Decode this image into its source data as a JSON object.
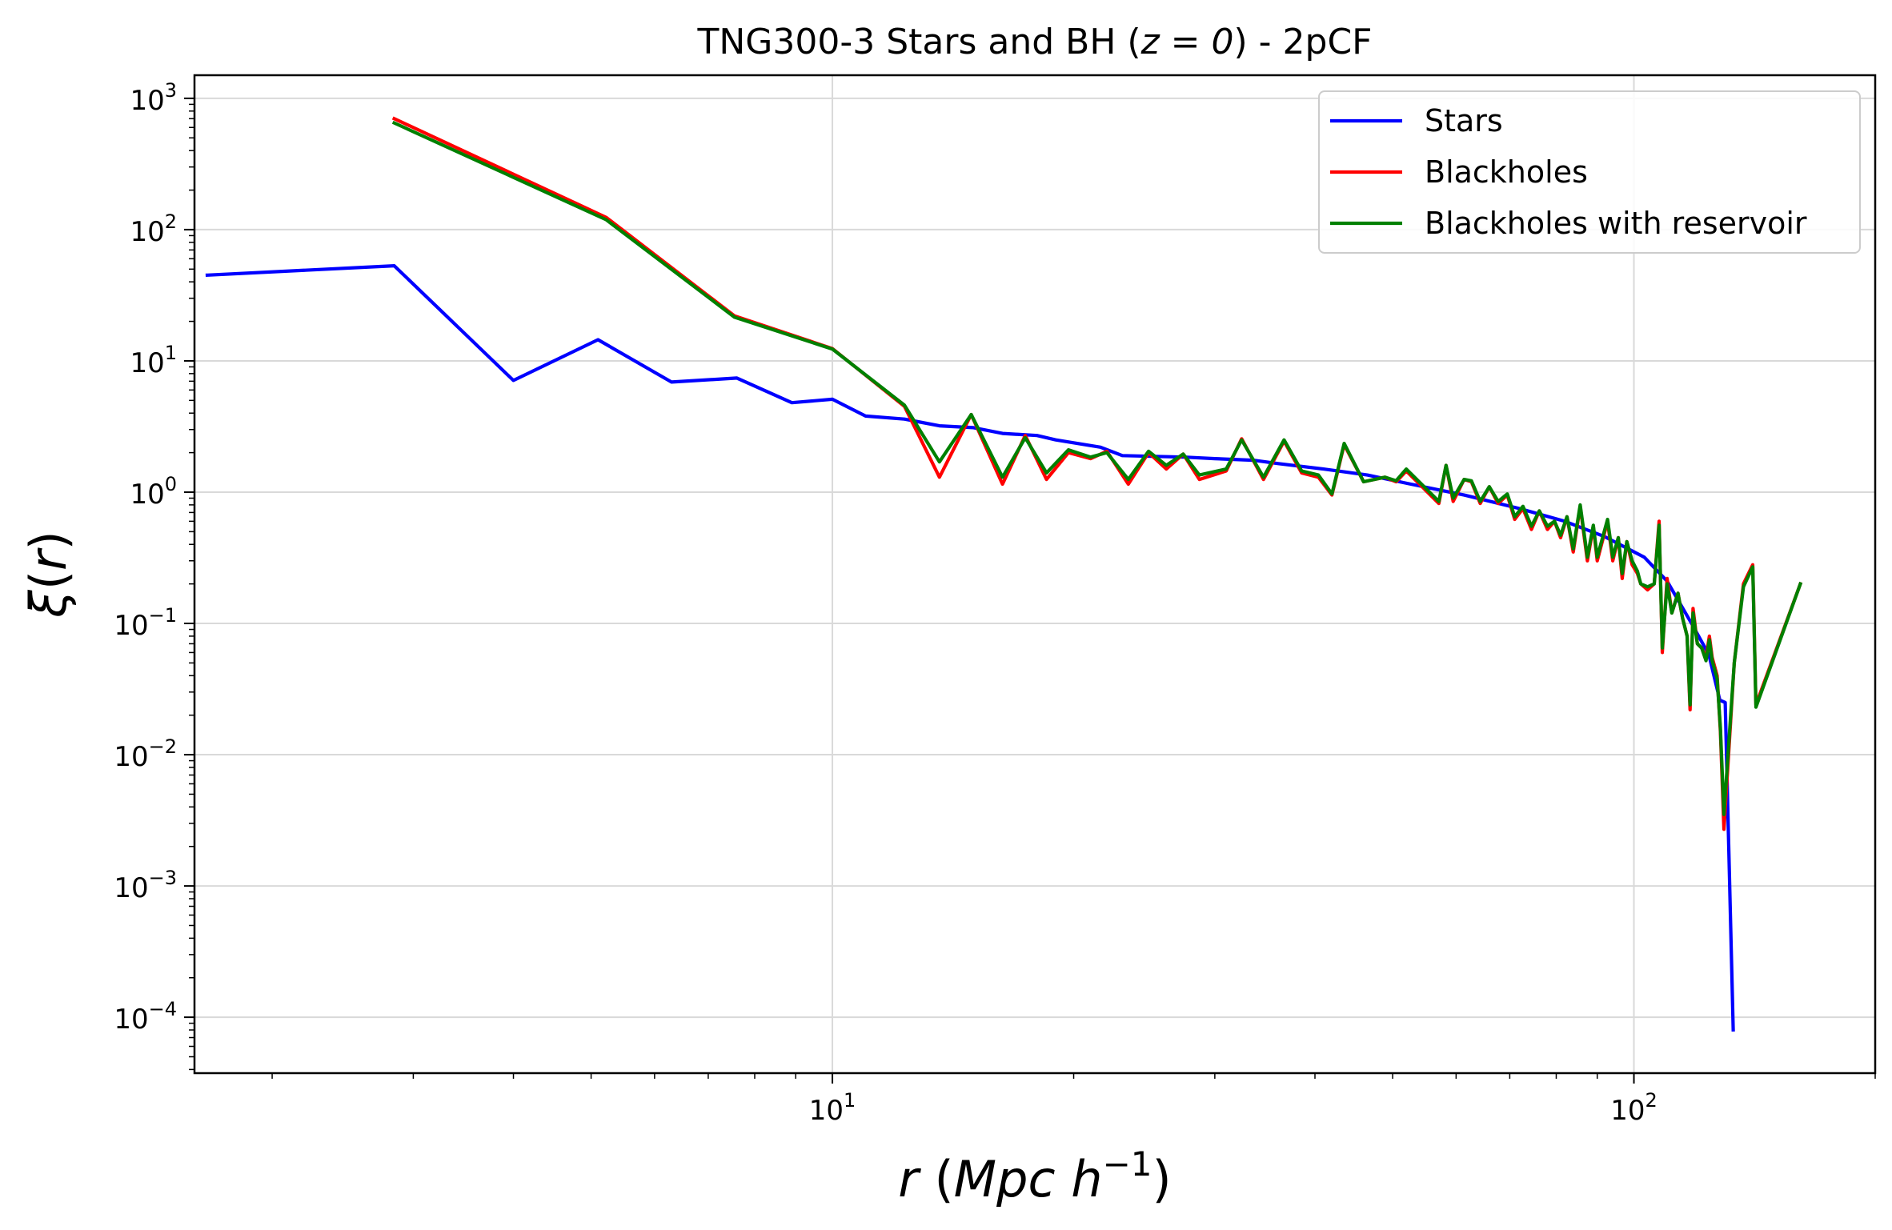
{
  "chart_data": {
    "type": "line",
    "title": "TNG300-3 Stars and BH (z = 0) - 2pCF",
    "title_parts": {
      "before": "TNG300-3 Stars and BH (",
      "math": "z = 0",
      "after": ") - 2pCF"
    },
    "xlabel": "r (Mpc h^-1)",
    "ylabel": "ξ(r)",
    "xscale": "log",
    "yscale": "log",
    "xlim": [
      1.6,
      200
    ],
    "ylim": [
      3.75e-05,
      1500
    ],
    "grid": true,
    "legend_position": "top-right",
    "x_ticks": [
      {
        "value": 10,
        "label_base": "10",
        "label_exp": "1"
      },
      {
        "value": 100,
        "label_base": "10",
        "label_exp": "2"
      }
    ],
    "y_ticks": [
      {
        "value": 1000,
        "label_base": "10",
        "label_exp": "3"
      },
      {
        "value": 100,
        "label_base": "10",
        "label_exp": "2"
      },
      {
        "value": 10,
        "label_base": "10",
        "label_exp": "1"
      },
      {
        "value": 1,
        "label_base": "10",
        "label_exp": "0"
      },
      {
        "value": 0.1,
        "label_base": "10",
        "label_exp": "−1"
      },
      {
        "value": 0.01,
        "label_base": "10",
        "label_exp": "−2"
      },
      {
        "value": 0.001,
        "label_base": "10",
        "label_exp": "−3"
      },
      {
        "value": 0.0001,
        "label_base": "10",
        "label_exp": "−4"
      }
    ],
    "series": [
      {
        "name": "Stars",
        "color": "#0000ff",
        "points": [
          [
            1.66,
            45
          ],
          [
            2.84,
            53
          ],
          [
            4.0,
            7.1
          ],
          [
            5.1,
            14.5
          ],
          [
            6.3,
            6.9
          ],
          [
            7.6,
            7.4
          ],
          [
            8.9,
            4.8
          ],
          [
            10.0,
            5.1
          ],
          [
            11.0,
            3.8
          ],
          [
            12.3,
            3.6
          ],
          [
            13.6,
            3.2
          ],
          [
            15.0,
            3.1
          ],
          [
            16.3,
            2.8
          ],
          [
            18.0,
            2.7
          ],
          [
            19.0,
            2.5
          ],
          [
            21.6,
            2.2
          ],
          [
            23.0,
            1.9
          ],
          [
            27.5,
            1.85
          ],
          [
            30.0,
            1.8
          ],
          [
            33.5,
            1.75
          ],
          [
            36.0,
            1.65
          ],
          [
            41.0,
            1.5
          ],
          [
            46.5,
            1.35
          ],
          [
            52.7,
            1.15
          ],
          [
            61.4,
            0.95
          ],
          [
            72.0,
            0.75
          ],
          [
            82.0,
            0.6
          ],
          [
            91.8,
            0.46
          ],
          [
            103,
            0.32
          ],
          [
            110,
            0.21
          ],
          [
            118,
            0.1
          ],
          [
            124,
            0.058
          ],
          [
            128,
            0.026
          ],
          [
            130,
            0.025
          ],
          [
            133,
            8e-05
          ]
        ]
      },
      {
        "name": "Blackholes",
        "color": "#ff0000",
        "points": [
          [
            2.84,
            700
          ],
          [
            5.22,
            124
          ],
          [
            7.55,
            22
          ],
          [
            10.0,
            12.4
          ],
          [
            12.3,
            4.5
          ],
          [
            13.6,
            1.3
          ],
          [
            14.9,
            3.9
          ],
          [
            16.3,
            1.15
          ],
          [
            17.4,
            2.7
          ],
          [
            18.5,
            1.25
          ],
          [
            19.7,
            2.0
          ],
          [
            21.0,
            1.8
          ],
          [
            22.0,
            2.05
          ],
          [
            23.4,
            1.15
          ],
          [
            24.8,
            2.0
          ],
          [
            26.1,
            1.5
          ],
          [
            27.4,
            1.95
          ],
          [
            28.7,
            1.25
          ],
          [
            31.0,
            1.45
          ],
          [
            32.4,
            2.55
          ],
          [
            34.5,
            1.25
          ],
          [
            36.6,
            2.45
          ],
          [
            38.5,
            1.4
          ],
          [
            40.4,
            1.3
          ],
          [
            42.0,
            0.95
          ],
          [
            43.5,
            2.3
          ],
          [
            46.0,
            1.2
          ],
          [
            48.9,
            1.3
          ],
          [
            50.5,
            1.2
          ],
          [
            52.0,
            1.45
          ],
          [
            57.1,
            0.82
          ],
          [
            58.3,
            1.6
          ],
          [
            59.5,
            0.85
          ],
          [
            61.4,
            1.25
          ],
          [
            62.7,
            1.2
          ],
          [
            64.3,
            0.82
          ],
          [
            66.0,
            1.1
          ],
          [
            67.7,
            0.82
          ],
          [
            69.5,
            0.95
          ],
          [
            71.0,
            0.62
          ],
          [
            72.7,
            0.75
          ],
          [
            74.5,
            0.52
          ],
          [
            76.2,
            0.72
          ],
          [
            78.0,
            0.52
          ],
          [
            79.6,
            0.6
          ],
          [
            81.0,
            0.45
          ],
          [
            82.5,
            0.65
          ],
          [
            84.0,
            0.35
          ],
          [
            85.7,
            0.78
          ],
          [
            87.5,
            0.3
          ],
          [
            89.0,
            0.55
          ],
          [
            90.0,
            0.3
          ],
          [
            92.7,
            0.6
          ],
          [
            94.1,
            0.3
          ],
          [
            95.6,
            0.45
          ],
          [
            96.7,
            0.22
          ],
          [
            98.0,
            0.42
          ],
          [
            99.5,
            0.28
          ],
          [
            101,
            0.24
          ],
          [
            102,
            0.2
          ],
          [
            104,
            0.18
          ],
          [
            106,
            0.2
          ],
          [
            107.5,
            0.6
          ],
          [
            108.5,
            0.06
          ],
          [
            110,
            0.22
          ],
          [
            111.5,
            0.12
          ],
          [
            113.5,
            0.17
          ],
          [
            115,
            0.11
          ],
          [
            116.5,
            0.08
          ],
          [
            117.5,
            0.022
          ],
          [
            118.5,
            0.13
          ],
          [
            120,
            0.07
          ],
          [
            121.5,
            0.065
          ],
          [
            123,
            0.055
          ],
          [
            124.2,
            0.08
          ],
          [
            125.2,
            0.055
          ],
          [
            127,
            0.04
          ],
          [
            128.2,
            0.015
          ],
          [
            129.5,
            0.0027
          ],
          [
            133.4,
            0.05
          ],
          [
            137,
            0.2
          ],
          [
            140.7,
            0.28
          ],
          [
            142,
            0.024
          ],
          [
            161.3,
            0.2
          ]
        ]
      },
      {
        "name": "Blackholes with reservoir",
        "color": "#008000",
        "points": [
          [
            2.84,
            650
          ],
          [
            5.22,
            119
          ],
          [
            7.55,
            21.5
          ],
          [
            10.0,
            12.3
          ],
          [
            12.3,
            4.6
          ],
          [
            13.6,
            1.7
          ],
          [
            14.9,
            3.9
          ],
          [
            16.3,
            1.3
          ],
          [
            17.4,
            2.6
          ],
          [
            18.5,
            1.4
          ],
          [
            19.7,
            2.1
          ],
          [
            21.0,
            1.85
          ],
          [
            22.0,
            2.0
          ],
          [
            23.4,
            1.25
          ],
          [
            24.8,
            2.05
          ],
          [
            26.1,
            1.6
          ],
          [
            27.4,
            1.95
          ],
          [
            28.7,
            1.35
          ],
          [
            31.0,
            1.5
          ],
          [
            32.4,
            2.5
          ],
          [
            34.5,
            1.3
          ],
          [
            36.6,
            2.5
          ],
          [
            38.5,
            1.45
          ],
          [
            40.4,
            1.35
          ],
          [
            42.0,
            0.97
          ],
          [
            43.5,
            2.35
          ],
          [
            46.0,
            1.2
          ],
          [
            48.9,
            1.3
          ],
          [
            50.5,
            1.22
          ],
          [
            52.0,
            1.5
          ],
          [
            57.1,
            0.85
          ],
          [
            58.3,
            1.6
          ],
          [
            59.5,
            0.9
          ],
          [
            61.4,
            1.25
          ],
          [
            62.7,
            1.22
          ],
          [
            64.3,
            0.85
          ],
          [
            66.0,
            1.1
          ],
          [
            67.7,
            0.85
          ],
          [
            69.5,
            0.97
          ],
          [
            71.0,
            0.65
          ],
          [
            72.7,
            0.78
          ],
          [
            74.5,
            0.55
          ],
          [
            76.2,
            0.72
          ],
          [
            78.0,
            0.55
          ],
          [
            79.6,
            0.6
          ],
          [
            81.0,
            0.47
          ],
          [
            82.5,
            0.65
          ],
          [
            84.0,
            0.37
          ],
          [
            85.7,
            0.8
          ],
          [
            87.5,
            0.32
          ],
          [
            89.0,
            0.56
          ],
          [
            90.0,
            0.32
          ],
          [
            92.7,
            0.62
          ],
          [
            94.1,
            0.32
          ],
          [
            95.6,
            0.45
          ],
          [
            96.7,
            0.24
          ],
          [
            98.0,
            0.42
          ],
          [
            99.5,
            0.3
          ],
          [
            101,
            0.25
          ],
          [
            102,
            0.2
          ],
          [
            104,
            0.19
          ],
          [
            106,
            0.2
          ],
          [
            107.5,
            0.56
          ],
          [
            108.5,
            0.065
          ],
          [
            110,
            0.2
          ],
          [
            111.5,
            0.12
          ],
          [
            113.5,
            0.17
          ],
          [
            115,
            0.11
          ],
          [
            116.5,
            0.08
          ],
          [
            117.5,
            0.024
          ],
          [
            118.5,
            0.12
          ],
          [
            120,
            0.07
          ],
          [
            121.5,
            0.065
          ],
          [
            123,
            0.052
          ],
          [
            124.2,
            0.075
          ],
          [
            125.2,
            0.052
          ],
          [
            127,
            0.038
          ],
          [
            128.2,
            0.016
          ],
          [
            129.5,
            0.0035
          ],
          [
            133.4,
            0.05
          ],
          [
            137,
            0.19
          ],
          [
            140.7,
            0.27
          ],
          [
            142,
            0.023
          ],
          [
            161.3,
            0.2
          ]
        ]
      }
    ]
  }
}
